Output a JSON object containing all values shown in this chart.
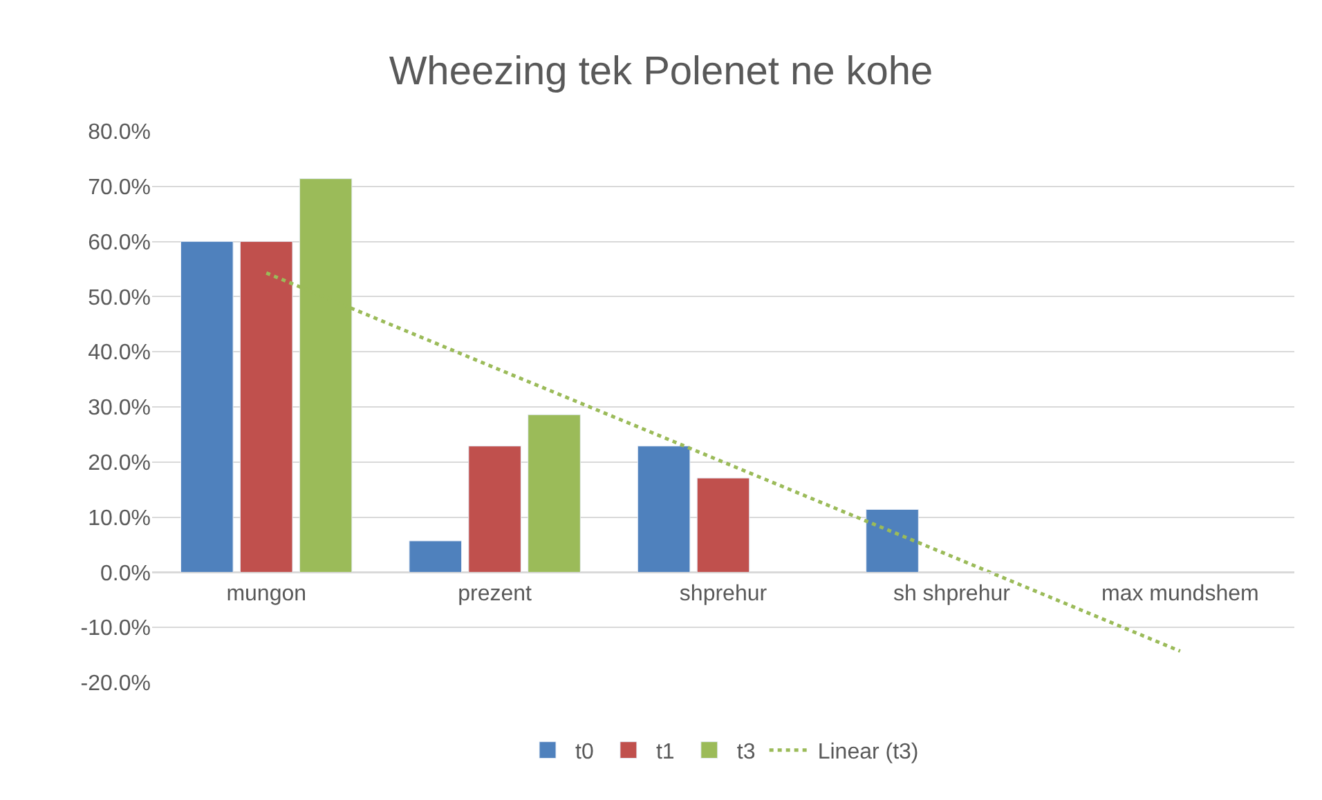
{
  "chart_data": {
    "type": "bar",
    "title": "Wheezing tek Polenet ne kohe",
    "categories": [
      "mungon",
      "prezent",
      "shprehur",
      "sh shprehur",
      "max mundshem"
    ],
    "series": [
      {
        "name": "t0",
        "color": "#4f81bd",
        "values": [
          60,
          5.7,
          22.9,
          11.4,
          null
        ]
      },
      {
        "name": "t1",
        "color": "#c0504d",
        "values": [
          60,
          22.9,
          17.1,
          null,
          null
        ]
      },
      {
        "name": "t3",
        "color": "#9bbb59",
        "values": [
          71.4,
          28.6,
          null,
          null,
          null
        ]
      },
      {
        "name": "Linear (t3)",
        "type": "line",
        "color": "#9bbb59",
        "line_style": "dotted",
        "values": [
          54.3,
          37.1,
          20,
          2.9,
          -14.3
        ]
      }
    ],
    "ylim": [
      -20,
      80
    ],
    "yticks": [
      {
        "value": -20,
        "label": "-20.0%"
      },
      {
        "value": -10,
        "label": "-10.0%"
      },
      {
        "value": 0,
        "label": "0.0%"
      },
      {
        "value": 10,
        "label": "10.0%"
      },
      {
        "value": 20,
        "label": "20.0%"
      },
      {
        "value": 30,
        "label": "30.0%"
      },
      {
        "value": 40,
        "label": "40.0%"
      },
      {
        "value": 50,
        "label": "50.0%"
      },
      {
        "value": 60,
        "label": "60.0%"
      },
      {
        "value": 70,
        "label": "70.0%"
      },
      {
        "value": 80,
        "label": "80.0%"
      }
    ],
    "grid": "y",
    "legend": "bottom"
  }
}
